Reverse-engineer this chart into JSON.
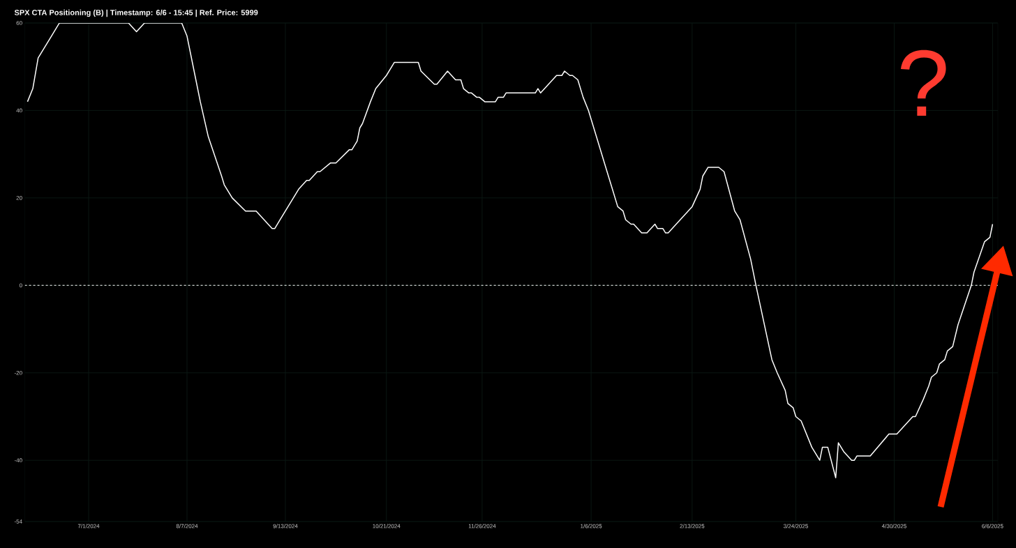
{
  "chart_data": {
    "type": "line",
    "title": "SPX CTA Positioning (B) | Timestamp: 6/6 - 15:45 | Ref. Price: 5999",
    "x": [
      "2024-06-08",
      "2024-06-10",
      "2024-06-12",
      "2024-06-16",
      "2024-06-17",
      "2024-06-20",
      "2024-07-16",
      "2024-07-19",
      "2024-07-22",
      "2024-08-05",
      "2024-08-07",
      "2024-08-10",
      "2024-08-12",
      "2024-08-15",
      "2024-08-20",
      "2024-08-21",
      "2024-08-22",
      "2024-08-24",
      "2024-08-29",
      "2024-09-02",
      "2024-09-08",
      "2024-09-09",
      "2024-09-11",
      "2024-09-12",
      "2024-09-14",
      "2024-09-16",
      "2024-09-18",
      "2024-09-21",
      "2024-09-22",
      "2024-09-25",
      "2024-09-26",
      "2024-09-30",
      "2024-10-02",
      "2024-10-07",
      "2024-10-08",
      "2024-10-10",
      "2024-10-11",
      "2024-10-12",
      "2024-10-15",
      "2024-10-17",
      "2024-10-21",
      "2024-10-23",
      "2024-10-24",
      "2024-11-02",
      "2024-11-03",
      "2024-11-08",
      "2024-11-09",
      "2024-11-13",
      "2024-11-16",
      "2024-11-18",
      "2024-11-19",
      "2024-11-21",
      "2024-11-22",
      "2024-11-24",
      "2024-11-25",
      "2024-11-27",
      "2024-12-01",
      "2024-12-02",
      "2024-12-04",
      "2024-12-05",
      "2024-12-16",
      "2024-12-17",
      "2024-12-18",
      "2024-12-24",
      "2024-12-26",
      "2024-12-27",
      "2024-12-29",
      "2024-12-30",
      "2025-01-01",
      "2025-01-03",
      "2025-01-05",
      "2025-01-06",
      "2025-01-08",
      "2025-01-11",
      "2025-01-12",
      "2025-01-14",
      "2025-01-16",
      "2025-01-18",
      "2025-01-19",
      "2025-01-21",
      "2025-01-22",
      "2025-01-25",
      "2025-01-27",
      "2025-01-30",
      "2025-01-31",
      "2025-02-02",
      "2025-02-03",
      "2025-02-04",
      "2025-02-13",
      "2025-02-16",
      "2025-02-17",
      "2025-02-19",
      "2025-02-23",
      "2025-02-25",
      "2025-03-01",
      "2025-03-03",
      "2025-03-07",
      "2025-03-09",
      "2025-03-15",
      "2025-03-17",
      "2025-03-20",
      "2025-03-21",
      "2025-03-23",
      "2025-03-24",
      "2025-03-26",
      "2025-03-30",
      "2025-03-31",
      "2025-04-02",
      "2025-04-03",
      "2025-04-05",
      "2025-04-08",
      "2025-04-09",
      "2025-04-11",
      "2025-04-14",
      "2025-04-15",
      "2025-04-16",
      "2025-04-21",
      "2025-04-28",
      "2025-05-01",
      "2025-05-07",
      "2025-05-08",
      "2025-05-11",
      "2025-05-13",
      "2025-05-14",
      "2025-05-16",
      "2025-05-17",
      "2025-05-19",
      "2025-05-20",
      "2025-05-22",
      "2025-05-24",
      "2025-05-29",
      "2025-05-30",
      "2025-06-03",
      "2025-06-05",
      "2025-06-06"
    ],
    "series": [
      {
        "color": "#ffffff",
        "values": [
          42,
          45,
          52,
          56,
          57,
          60,
          60,
          58,
          60,
          60,
          57,
          48,
          42,
          34,
          25,
          23,
          22,
          20,
          17,
          17,
          13,
          13,
          15,
          16,
          18,
          20,
          22,
          24,
          24,
          26,
          26,
          28,
          28,
          31,
          31,
          33,
          36,
          37,
          42,
          45,
          48,
          50,
          51,
          51,
          49,
          46,
          46,
          49,
          47,
          47,
          45,
          44,
          44,
          43,
          43,
          42,
          42,
          43,
          43,
          44,
          44,
          45,
          44,
          48,
          48,
          49,
          48,
          48,
          47,
          43,
          40,
          38,
          34,
          28,
          26,
          22,
          18,
          17,
          15,
          14,
          14,
          12,
          12,
          14,
          13,
          13,
          12,
          12,
          18,
          22,
          25,
          27,
          27,
          26,
          17,
          15,
          6,
          0,
          -17,
          -20,
          -24,
          -27,
          -28,
          -30,
          -31,
          -37,
          -38,
          -40,
          -37,
          -37,
          -44,
          -36,
          -38,
          -40,
          -40,
          -39,
          -39,
          -34,
          -34,
          -30,
          -30,
          -26,
          -23,
          -21,
          -20,
          -18,
          -17,
          -15,
          -14,
          -9,
          0,
          3,
          10,
          11,
          14
        ]
      }
    ],
    "xlim": [
      "2024-06-07",
      "2025-06-08"
    ],
    "xticks": [
      {
        "value": "2024-07-01",
        "label": "7/1/2024"
      },
      {
        "value": "2024-08-07",
        "label": "8/7/2024"
      },
      {
        "value": "2024-09-13",
        "label": "9/13/2024"
      },
      {
        "value": "2024-10-21",
        "label": "10/21/2024"
      },
      {
        "value": "2024-11-26",
        "label": "11/26/2024"
      },
      {
        "value": "2025-01-06",
        "label": "1/6/2025"
      },
      {
        "value": "2025-02-13",
        "label": "2/13/2025"
      },
      {
        "value": "2025-03-24",
        "label": "3/24/2025"
      },
      {
        "value": "2025-04-30",
        "label": "4/30/2025"
      },
      {
        "value": "2025-06-06",
        "label": "6/6/2025"
      }
    ],
    "ylim": [
      -54,
      60
    ],
    "yticks": [
      -54,
      -40,
      -20,
      0,
      20,
      40,
      60
    ],
    "grid": true,
    "ref_lines": [
      {
        "axis": "y",
        "value": 0,
        "color": "#ffffff",
        "line_style": "dashed"
      }
    ],
    "annotations": [
      "?"
    ]
  }
}
